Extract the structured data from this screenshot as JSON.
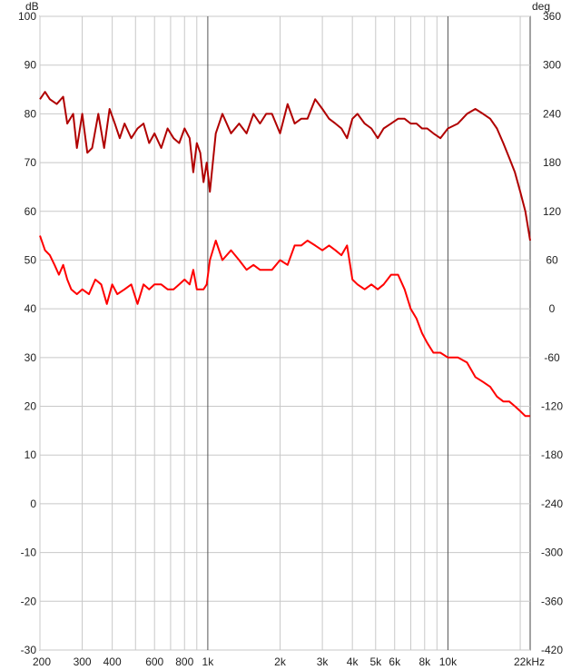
{
  "chart_data": {
    "type": "line",
    "left_axis_unit": "dB",
    "right_axis_unit": "deg",
    "x_scale": "log",
    "xlim": [
      200,
      22000
    ],
    "ylim_left": [
      -30,
      100
    ],
    "ylim_right": [
      -420,
      360
    ],
    "x_ticks": [
      {
        "v": 200,
        "label": "200"
      },
      {
        "v": 300,
        "label": "300"
      },
      {
        "v": 400,
        "label": "400"
      },
      {
        "v": 600,
        "label": "600"
      },
      {
        "v": 800,
        "label": "800"
      },
      {
        "v": 1000,
        "label": "1k"
      },
      {
        "v": 2000,
        "label": "2k"
      },
      {
        "v": 3000,
        "label": "3k"
      },
      {
        "v": 4000,
        "label": "4k"
      },
      {
        "v": 5000,
        "label": "5k"
      },
      {
        "v": 6000,
        "label": "6k"
      },
      {
        "v": 8000,
        "label": "8k"
      },
      {
        "v": 10000,
        "label": "10k"
      },
      {
        "v": 22000,
        "label": "22kHz"
      }
    ],
    "y_ticks_left": [
      100,
      90,
      80,
      70,
      60,
      50,
      40,
      30,
      20,
      10,
      0,
      -10,
      -20,
      -30
    ],
    "y_ticks_right": [
      360,
      300,
      240,
      180,
      120,
      60,
      0,
      -60,
      -120,
      -180,
      -240,
      -300,
      -360,
      -420
    ],
    "grid": true,
    "series": [
      {
        "axis": "left",
        "color": "#b00000",
        "points": [
          [
            200,
            83
          ],
          [
            210,
            84.5
          ],
          [
            220,
            83
          ],
          [
            235,
            82
          ],
          [
            250,
            83.5
          ],
          [
            260,
            78
          ],
          [
            275,
            80
          ],
          [
            285,
            73
          ],
          [
            300,
            80
          ],
          [
            315,
            72
          ],
          [
            330,
            73
          ],
          [
            350,
            80
          ],
          [
            370,
            73
          ],
          [
            390,
            81
          ],
          [
            410,
            78
          ],
          [
            430,
            75
          ],
          [
            450,
            78
          ],
          [
            480,
            75
          ],
          [
            510,
            77
          ],
          [
            540,
            78
          ],
          [
            570,
            74
          ],
          [
            600,
            76
          ],
          [
            640,
            73
          ],
          [
            680,
            77
          ],
          [
            720,
            75
          ],
          [
            760,
            74
          ],
          [
            800,
            77
          ],
          [
            840,
            75
          ],
          [
            870,
            68
          ],
          [
            900,
            74
          ],
          [
            930,
            72
          ],
          [
            960,
            66
          ],
          [
            990,
            70
          ],
          [
            1020,
            64
          ],
          [
            1080,
            76
          ],
          [
            1150,
            80
          ],
          [
            1250,
            76
          ],
          [
            1350,
            78
          ],
          [
            1450,
            76
          ],
          [
            1550,
            80
          ],
          [
            1650,
            78
          ],
          [
            1750,
            80
          ],
          [
            1850,
            80
          ],
          [
            2000,
            76
          ],
          [
            2150,
            82
          ],
          [
            2300,
            78
          ],
          [
            2450,
            79
          ],
          [
            2600,
            79
          ],
          [
            2800,
            83
          ],
          [
            3000,
            81
          ],
          [
            3200,
            79
          ],
          [
            3400,
            78
          ],
          [
            3600,
            77
          ],
          [
            3800,
            75
          ],
          [
            4000,
            79
          ],
          [
            4200,
            80
          ],
          [
            4500,
            78
          ],
          [
            4800,
            77
          ],
          [
            5100,
            75
          ],
          [
            5400,
            77
          ],
          [
            5800,
            78
          ],
          [
            6200,
            79
          ],
          [
            6600,
            79
          ],
          [
            7000,
            78
          ],
          [
            7400,
            78
          ],
          [
            7800,
            77
          ],
          [
            8200,
            77
          ],
          [
            8700,
            76
          ],
          [
            9300,
            75
          ],
          [
            10000,
            77
          ],
          [
            11000,
            78
          ],
          [
            12000,
            80
          ],
          [
            13000,
            81
          ],
          [
            14000,
            80
          ],
          [
            15000,
            79
          ],
          [
            16000,
            77
          ],
          [
            17000,
            74
          ],
          [
            18000,
            71
          ],
          [
            19000,
            68
          ],
          [
            20000,
            64
          ],
          [
            21000,
            60
          ],
          [
            22000,
            54
          ]
        ]
      },
      {
        "axis": "left",
        "color": "#ff0000",
        "points": [
          [
            200,
            55
          ],
          [
            210,
            52
          ],
          [
            220,
            51
          ],
          [
            230,
            49
          ],
          [
            240,
            47
          ],
          [
            250,
            49
          ],
          [
            260,
            46
          ],
          [
            270,
            44
          ],
          [
            285,
            43
          ],
          [
            300,
            44
          ],
          [
            320,
            43
          ],
          [
            340,
            46
          ],
          [
            360,
            45
          ],
          [
            380,
            41
          ],
          [
            400,
            45
          ],
          [
            420,
            43
          ],
          [
            450,
            44
          ],
          [
            480,
            45
          ],
          [
            510,
            41
          ],
          [
            540,
            45
          ],
          [
            570,
            44
          ],
          [
            600,
            45
          ],
          [
            640,
            45
          ],
          [
            680,
            44
          ],
          [
            720,
            44
          ],
          [
            760,
            45
          ],
          [
            800,
            46
          ],
          [
            840,
            45
          ],
          [
            870,
            48
          ],
          [
            900,
            44
          ],
          [
            930,
            44
          ],
          [
            960,
            44
          ],
          [
            990,
            45
          ],
          [
            1020,
            50
          ],
          [
            1080,
            54
          ],
          [
            1150,
            50
          ],
          [
            1250,
            52
          ],
          [
            1350,
            50
          ],
          [
            1450,
            48
          ],
          [
            1550,
            49
          ],
          [
            1650,
            48
          ],
          [
            1750,
            48
          ],
          [
            1850,
            48
          ],
          [
            2000,
            50
          ],
          [
            2150,
            49
          ],
          [
            2300,
            53
          ],
          [
            2450,
            53
          ],
          [
            2600,
            54
          ],
          [
            2800,
            53
          ],
          [
            3000,
            52
          ],
          [
            3200,
            53
          ],
          [
            3400,
            52
          ],
          [
            3600,
            51
          ],
          [
            3800,
            53
          ],
          [
            4000,
            46
          ],
          [
            4200,
            45
          ],
          [
            4500,
            44
          ],
          [
            4800,
            45
          ],
          [
            5100,
            44
          ],
          [
            5400,
            45
          ],
          [
            5800,
            47
          ],
          [
            6200,
            47
          ],
          [
            6600,
            44
          ],
          [
            7000,
            40
          ],
          [
            7400,
            38
          ],
          [
            7800,
            35
          ],
          [
            8200,
            33
          ],
          [
            8700,
            31
          ],
          [
            9300,
            31
          ],
          [
            10000,
            30
          ],
          [
            11000,
            30
          ],
          [
            12000,
            29
          ],
          [
            13000,
            26
          ],
          [
            14000,
            25
          ],
          [
            15000,
            24
          ],
          [
            16000,
            22
          ],
          [
            17000,
            21
          ],
          [
            18000,
            21
          ],
          [
            19000,
            20
          ],
          [
            20000,
            19
          ],
          [
            21000,
            18
          ],
          [
            22000,
            18
          ]
        ]
      }
    ]
  }
}
